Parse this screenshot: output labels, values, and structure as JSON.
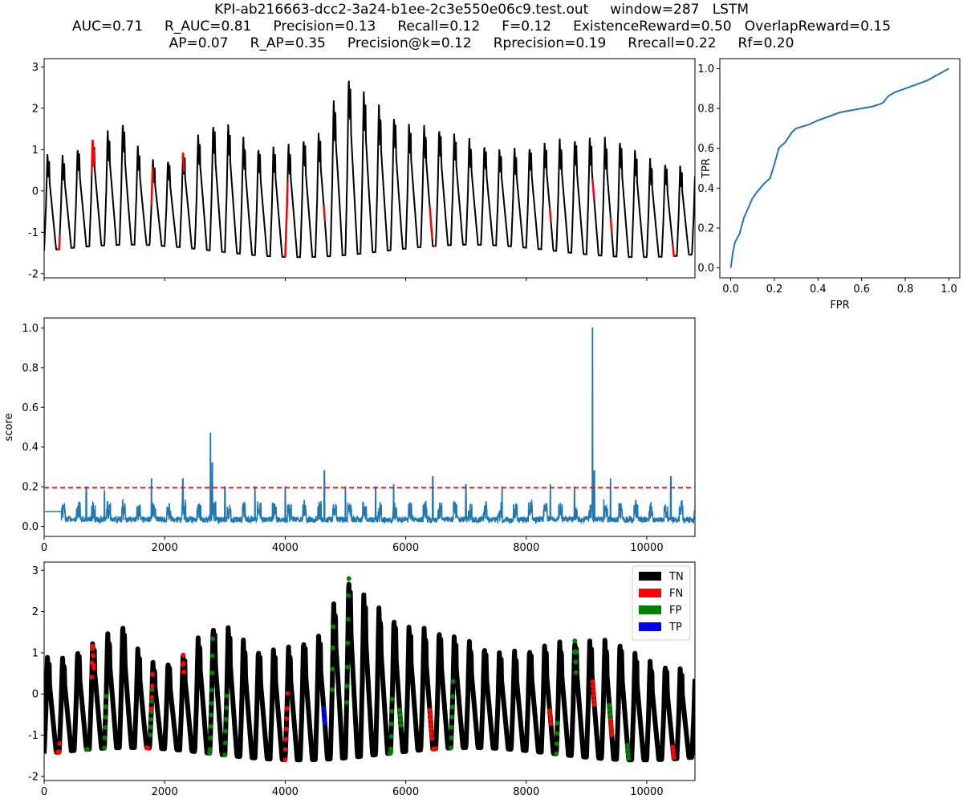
{
  "title": {
    "line1": "KPI-ab216663-dcc2-3a24-b1ee-2c3e550e06c9.test.out     window=287   LSTM",
    "line2": "AUC=0.71     R_AUC=0.81     Precision=0.13     Recall=0.12     F=0.12     ExistenceReward=0.50   OverlapReward=0.15",
    "line3": "AP=0.07     R_AP=0.35     Precision@k=0.12     Rprecision=0.19     Rrecall=0.22     Rf=0.20"
  },
  "colors": {
    "series": "#000000",
    "anomaly": "#ff0000",
    "score": "#1f77b4",
    "threshold": "#ff0000",
    "tn": "#000000",
    "fn": "#ff0000",
    "fp": "#008000",
    "tp": "#0000ff"
  },
  "chart_data": [
    {
      "id": "timeseries",
      "type": "line",
      "title": "",
      "xlabel": "",
      "ylabel": "",
      "xlim": [
        0,
        10800
      ],
      "ylim": [
        -2.1,
        3.2
      ],
      "yticks": [
        -2,
        -1,
        0,
        1,
        2,
        3
      ],
      "xticks_shown": false,
      "period": 250,
      "peak_amplitude": [
        [
          0,
          0.95
        ],
        [
          300,
          0.9
        ],
        [
          900,
          1.35
        ],
        [
          1300,
          1.75
        ],
        [
          1700,
          0.8
        ],
        [
          2200,
          0.8
        ],
        [
          2700,
          1.65
        ],
        [
          3000,
          1.75
        ],
        [
          3500,
          1.1
        ],
        [
          4000,
          1.15
        ],
        [
          4600,
          1.5
        ],
        [
          5000,
          2.95
        ],
        [
          5500,
          2.2
        ],
        [
          6000,
          1.7
        ],
        [
          6500,
          1.6
        ],
        [
          7000,
          1.35
        ],
        [
          7500,
          1.05
        ],
        [
          8000,
          1.1
        ],
        [
          8500,
          1.3
        ],
        [
          9000,
          1.35
        ],
        [
          9500,
          1.35
        ],
        [
          10000,
          0.85
        ],
        [
          10400,
          0.7
        ],
        [
          10800,
          0.6
        ]
      ],
      "anomaly_segments": [
        [
          220,
          260
        ],
        [
          790,
          830
        ],
        [
          1700,
          1720
        ],
        [
          1780,
          1800
        ],
        [
          2300,
          2320
        ],
        [
          4000,
          4040
        ],
        [
          4640,
          4660
        ],
        [
          6400,
          6440
        ],
        [
          6460,
          6500
        ],
        [
          8390,
          8410
        ],
        [
          9100,
          9130
        ],
        [
          9400,
          9420
        ],
        [
          10430,
          10450
        ]
      ]
    },
    {
      "id": "roc",
      "type": "line",
      "title": "",
      "xlabel": "FPR",
      "ylabel": "TPR",
      "xlim": [
        -0.05,
        1.05
      ],
      "ylim": [
        -0.05,
        1.05
      ],
      "xticks": [
        0.0,
        0.2,
        0.4,
        0.6,
        0.8,
        1.0
      ],
      "yticks": [
        0.0,
        0.2,
        0.4,
        0.6,
        0.8,
        1.0
      ],
      "x": [
        0.0,
        0.01,
        0.02,
        0.04,
        0.06,
        0.08,
        0.1,
        0.12,
        0.15,
        0.18,
        0.2,
        0.22,
        0.25,
        0.28,
        0.3,
        0.33,
        0.36,
        0.4,
        0.45,
        0.5,
        0.55,
        0.6,
        0.65,
        0.68,
        0.7,
        0.72,
        0.75,
        0.8,
        0.85,
        0.9,
        0.95,
        1.0
      ],
      "y": [
        0.0,
        0.08,
        0.13,
        0.17,
        0.25,
        0.3,
        0.35,
        0.38,
        0.42,
        0.45,
        0.52,
        0.6,
        0.63,
        0.68,
        0.7,
        0.71,
        0.72,
        0.74,
        0.76,
        0.78,
        0.79,
        0.8,
        0.81,
        0.82,
        0.83,
        0.86,
        0.88,
        0.9,
        0.92,
        0.94,
        0.97,
        1.0
      ]
    },
    {
      "id": "score",
      "type": "line",
      "title": "",
      "xlabel": "",
      "ylabel": "score",
      "xlim": [
        0,
        10800
      ],
      "ylim": [
        -0.05,
        1.05
      ],
      "xticks": [
        0,
        2000,
        4000,
        6000,
        8000,
        10000
      ],
      "yticks": [
        0.0,
        0.2,
        0.4,
        0.6,
        0.8,
        1.0
      ],
      "initial_level": 0.075,
      "initial_until": 287,
      "threshold": 0.195,
      "spikes": [
        [
          700,
          0.2
        ],
        [
          1000,
          0.18
        ],
        [
          1780,
          0.24
        ],
        [
          2300,
          0.24
        ],
        [
          2760,
          0.47
        ],
        [
          2790,
          0.32
        ],
        [
          3000,
          0.2
        ],
        [
          3500,
          0.2
        ],
        [
          4000,
          0.2
        ],
        [
          4650,
          0.28
        ],
        [
          5000,
          0.2
        ],
        [
          5500,
          0.2
        ],
        [
          5800,
          0.21
        ],
        [
          6450,
          0.25
        ],
        [
          7000,
          0.21
        ],
        [
          7600,
          0.2
        ],
        [
          8400,
          0.21
        ],
        [
          8800,
          0.2
        ],
        [
          9100,
          1.0
        ],
        [
          9130,
          0.28
        ],
        [
          9400,
          0.24
        ],
        [
          10400,
          0.25
        ]
      ]
    },
    {
      "id": "classification",
      "type": "scatter",
      "title": "",
      "xlabel": "",
      "ylabel": "",
      "xlim": [
        0,
        10800
      ],
      "ylim": [
        -2.1,
        3.2
      ],
      "xticks": [
        0,
        2000,
        4000,
        6000,
        8000,
        10000
      ],
      "yticks": [
        -2,
        -1,
        0,
        1,
        2,
        3
      ],
      "legend": [
        "TN",
        "FN",
        "FP",
        "TP"
      ],
      "legend_position": "top-right",
      "fp_segments": [
        [
          700,
          720
        ],
        [
          1000,
          1030
        ],
        [
          1760,
          1790
        ],
        [
          2740,
          2800
        ],
        [
          3000,
          3030
        ],
        [
          4780,
          4800
        ],
        [
          5020,
          5060
        ],
        [
          5740,
          5780
        ],
        [
          5900,
          5920
        ],
        [
          6750,
          6790
        ],
        [
          8500,
          8520
        ],
        [
          8800,
          8830
        ],
        [
          9380,
          9420
        ],
        [
          9680,
          9700
        ]
      ],
      "tp_segments": [
        [
          4640,
          4660
        ]
      ]
    }
  ]
}
